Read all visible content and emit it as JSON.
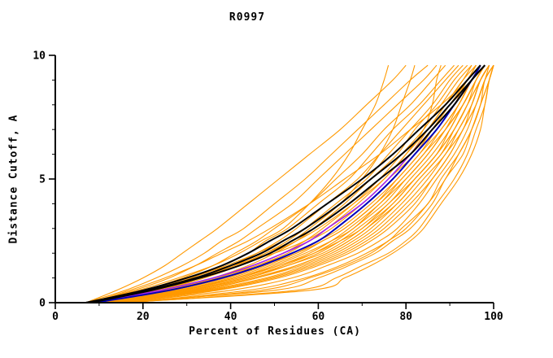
{
  "title": "R0997",
  "axes": {
    "xlabel": "Percent of Residues (CA)",
    "ylabel": "Distance Cutoff, A",
    "xlim": [
      0,
      100
    ],
    "ylim": [
      0,
      10
    ],
    "xticks_major": [
      0,
      20,
      40,
      60,
      80,
      100
    ],
    "xticks_minor": [
      10,
      30,
      50,
      70,
      90
    ],
    "yticks_major": [
      0,
      5,
      10
    ],
    "yticks_minor": [
      1,
      2,
      3,
      4,
      6,
      7,
      8,
      9
    ],
    "axis_color": "#000000"
  },
  "colors": {
    "background": "#ffffff",
    "other_models": "#ff9900",
    "highlight_black": "#000000",
    "highlight_blue": "#0000bb",
    "highlight_purple": "#a020f0"
  },
  "chart_data": {
    "type": "line",
    "title": "R0997",
    "xlabel": "Percent of Residues (CA)",
    "ylabel": "Distance Cutoff, A",
    "xlim": [
      0,
      100
    ],
    "ylim": [
      0,
      10
    ],
    "grid": false,
    "legend": "none",
    "y_levels": [
      0,
      0.5,
      1,
      1.5,
      2,
      2.5,
      3,
      4,
      5,
      6,
      7,
      8,
      9,
      9.6
    ],
    "groups": [
      {
        "name": "other-models",
        "color": "#ff9900",
        "width": 1.1,
        "series_x": [
          [
            7,
            14,
            20,
            25,
            29,
            33,
            37,
            44,
            51,
            58,
            65,
            71,
            77,
            80
          ],
          [
            7,
            16,
            23,
            29,
            34,
            38,
            43,
            50,
            57,
            63,
            69,
            75,
            81,
            85
          ],
          [
            8,
            18,
            26,
            32,
            37,
            42,
            46,
            54,
            60,
            66,
            72,
            78,
            84,
            87
          ],
          [
            8,
            20,
            29,
            36,
            41,
            46,
            50,
            58,
            64,
            70,
            75,
            81,
            86,
            89
          ],
          [
            8,
            22,
            31,
            38,
            44,
            48,
            53,
            60,
            67,
            72,
            77,
            83,
            88,
            91
          ],
          [
            9,
            23,
            33,
            40,
            46,
            51,
            55,
            62,
            69,
            74,
            79,
            84,
            89,
            92
          ],
          [
            9,
            24,
            34,
            42,
            48,
            53,
            57,
            64,
            71,
            76,
            81,
            86,
            90,
            93
          ],
          [
            9,
            25,
            36,
            44,
            50,
            55,
            59,
            66,
            72,
            78,
            82,
            87,
            91,
            94
          ],
          [
            8,
            25,
            37,
            45,
            52,
            57,
            61,
            68,
            74,
            79,
            84,
            88,
            92,
            95
          ],
          [
            10,
            26,
            38,
            46,
            53,
            58,
            63,
            70,
            76,
            81,
            85,
            89,
            93,
            96
          ],
          [
            10,
            27,
            39,
            48,
            55,
            60,
            64,
            71,
            77,
            82,
            86,
            90,
            94,
            96
          ],
          [
            11,
            28,
            40,
            49,
            56,
            61,
            66,
            73,
            78,
            83,
            87,
            91,
            94,
            97
          ],
          [
            11,
            29,
            42,
            51,
            58,
            63,
            67,
            74,
            79,
            84,
            88,
            92,
            95,
            97
          ],
          [
            12,
            30,
            43,
            52,
            59,
            64,
            68,
            75,
            80,
            85,
            89,
            92,
            95,
            98
          ],
          [
            12,
            31,
            44,
            53,
            60,
            65,
            69,
            76,
            81,
            86,
            90,
            93,
            96,
            98
          ],
          [
            13,
            32,
            45,
            55,
            62,
            67,
            71,
            77,
            82,
            87,
            91,
            94,
            96,
            98
          ],
          [
            13,
            33,
            46,
            56,
            63,
            68,
            72,
            78,
            83,
            88,
            91,
            94,
            97,
            99
          ],
          [
            14,
            34,
            48,
            57,
            64,
            69,
            73,
            79,
            84,
            89,
            92,
            95,
            97,
            99
          ],
          [
            14,
            35,
            49,
            58,
            65,
            70,
            74,
            80,
            85,
            89,
            93,
            95,
            97,
            99
          ],
          [
            15,
            37,
            51,
            60,
            67,
            72,
            76,
            82,
            86,
            90,
            93,
            96,
            98,
            99
          ],
          [
            15,
            40,
            54,
            62,
            69,
            74,
            78,
            83,
            87,
            91,
            94,
            96,
            98,
            100
          ],
          [
            16,
            44,
            57,
            65,
            71,
            76,
            79,
            85,
            88,
            92,
            95,
            97,
            98,
            100
          ],
          [
            14,
            50,
            60,
            67,
            73,
            77,
            81,
            86,
            89,
            93,
            95,
            97,
            99,
            100
          ],
          [
            16,
            55,
            64,
            70,
            76,
            80,
            83,
            87,
            91,
            94,
            96,
            98,
            99,
            100
          ],
          [
            15,
            58,
            66,
            72,
            77,
            81,
            84,
            88,
            92,
            95,
            97,
            98,
            99,
            100
          ],
          [
            9,
            20,
            30,
            40,
            50,
            57,
            62,
            70,
            76,
            82,
            86,
            90,
            94,
            96
          ],
          [
            10,
            24,
            33,
            41,
            49,
            55,
            60,
            68,
            75,
            80,
            85,
            89,
            93,
            95
          ],
          [
            11,
            27,
            37,
            46,
            54,
            60,
            65,
            72,
            78,
            83,
            88,
            92,
            95,
            97
          ],
          [
            12,
            29,
            41,
            50,
            57,
            63,
            68,
            74,
            80,
            85,
            89,
            93,
            96,
            98
          ],
          [
            13,
            31,
            43,
            53,
            61,
            66,
            70,
            77,
            82,
            87,
            90,
            93,
            96,
            98
          ],
          [
            8,
            17,
            25,
            32,
            38,
            44,
            49,
            58,
            66,
            74,
            81,
            88,
            94,
            97
          ],
          [
            9,
            21,
            31,
            39,
            46,
            52,
            57,
            65,
            72,
            79,
            85,
            90,
            94,
            96
          ],
          [
            10,
            25,
            36,
            45,
            52,
            58,
            62,
            69,
            75,
            80,
            84,
            86,
            87,
            88
          ],
          [
            9,
            22,
            32,
            41,
            48,
            54,
            58,
            65,
            70,
            74,
            77,
            79,
            81,
            82
          ],
          [
            8,
            19,
            28,
            36,
            42,
            47,
            52,
            58,
            63,
            67,
            70,
            73,
            75,
            76
          ],
          [
            17,
            47,
            58,
            66,
            72,
            76,
            80,
            85,
            89,
            92,
            95,
            97,
            99,
            100
          ],
          [
            12,
            33,
            46,
            55,
            62,
            67,
            71,
            78,
            83,
            88,
            92,
            95,
            97,
            99
          ],
          [
            11,
            26,
            38,
            47,
            55,
            61,
            66,
            73,
            79,
            84,
            89,
            93,
            96,
            98
          ],
          [
            10,
            28,
            41,
            51,
            59,
            65,
            70,
            76,
            82,
            87,
            91,
            94,
            97,
            99
          ],
          [
            13,
            36,
            50,
            59,
            66,
            71,
            75,
            81,
            86,
            90,
            93,
            96,
            98,
            100
          ]
        ]
      },
      {
        "name": "highlight-purple",
        "color": "#a020f0",
        "width": 1.6,
        "series_x": [
          [
            8,
            24,
            36,
            45,
            52,
            58,
            62,
            70,
            76,
            81,
            86,
            91,
            95,
            97
          ]
        ]
      },
      {
        "name": "highlight-blue",
        "color": "#0000bb",
        "width": 2,
        "series_x": [
          [
            9,
            26,
            38,
            47,
            54,
            60,
            64,
            71,
            77,
            82,
            87,
            91,
            95,
            97
          ]
        ]
      },
      {
        "name": "highlight-black",
        "color": "#000000",
        "width": 2,
        "series_x": [
          [
            7,
            20,
            30,
            38,
            44,
            49,
            54,
            62,
            70,
            77,
            83,
            89,
            94,
            97
          ],
          [
            7,
            21,
            32,
            40,
            47,
            52,
            57,
            65,
            72,
            79,
            85,
            90,
            95,
            98
          ],
          [
            8,
            22,
            33,
            42,
            49,
            54,
            59,
            67,
            74,
            81,
            86,
            91,
            95,
            98
          ]
        ]
      }
    ]
  }
}
